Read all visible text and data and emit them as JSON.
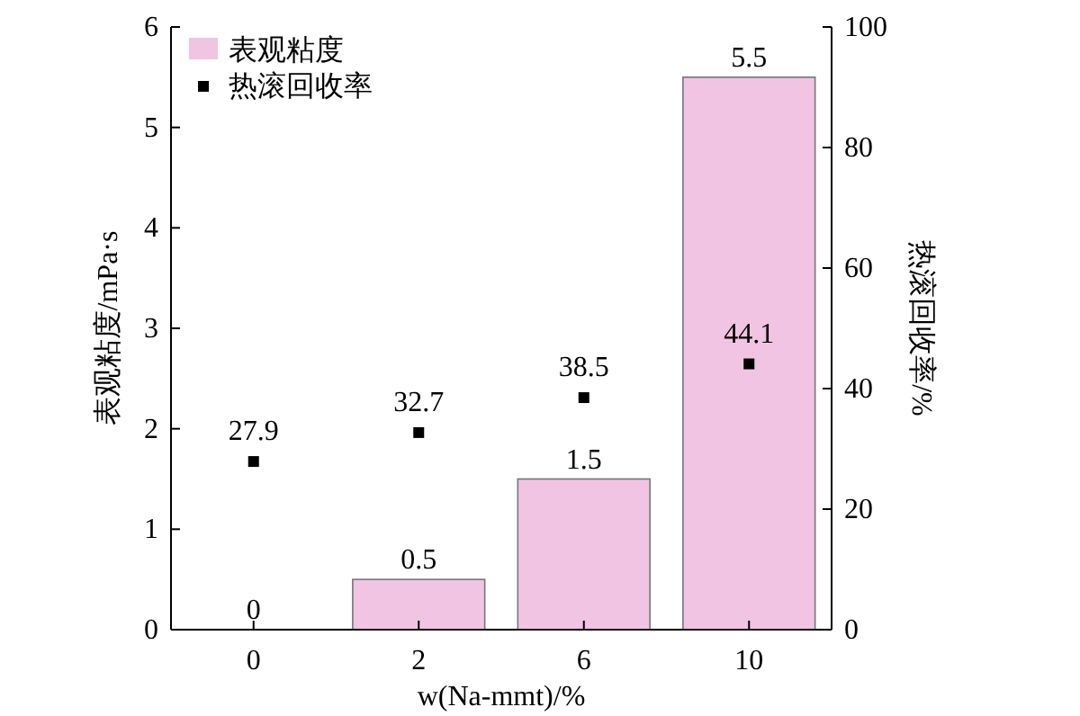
{
  "chart_data": {
    "type": "bar",
    "categories": [
      "0",
      "2",
      "6",
      "10"
    ],
    "xlabel": "w(Na-mmt)/%",
    "ylabel": "表观粘度/mPa·s",
    "y2label": "热滚回收率/%",
    "series": [
      {
        "name": "表观粘度",
        "color": "#f0c4e2",
        "values": [
          0,
          0.5,
          1.5,
          5.5
        ]
      },
      {
        "name": "热滚回收率",
        "type": "scatter",
        "axis": "y2",
        "color": "#000000",
        "values": [
          27.9,
          32.7,
          38.5,
          44.1
        ]
      }
    ],
    "ylim": [
      0,
      6
    ],
    "yticks": [
      0,
      1,
      2,
      3,
      4,
      5,
      6
    ],
    "y2lim": [
      0,
      100
    ],
    "y2ticks": [
      0,
      20,
      40,
      60,
      80,
      100
    ],
    "data_labels": true,
    "legend": "top left",
    "marker": "square",
    "grid": false
  }
}
